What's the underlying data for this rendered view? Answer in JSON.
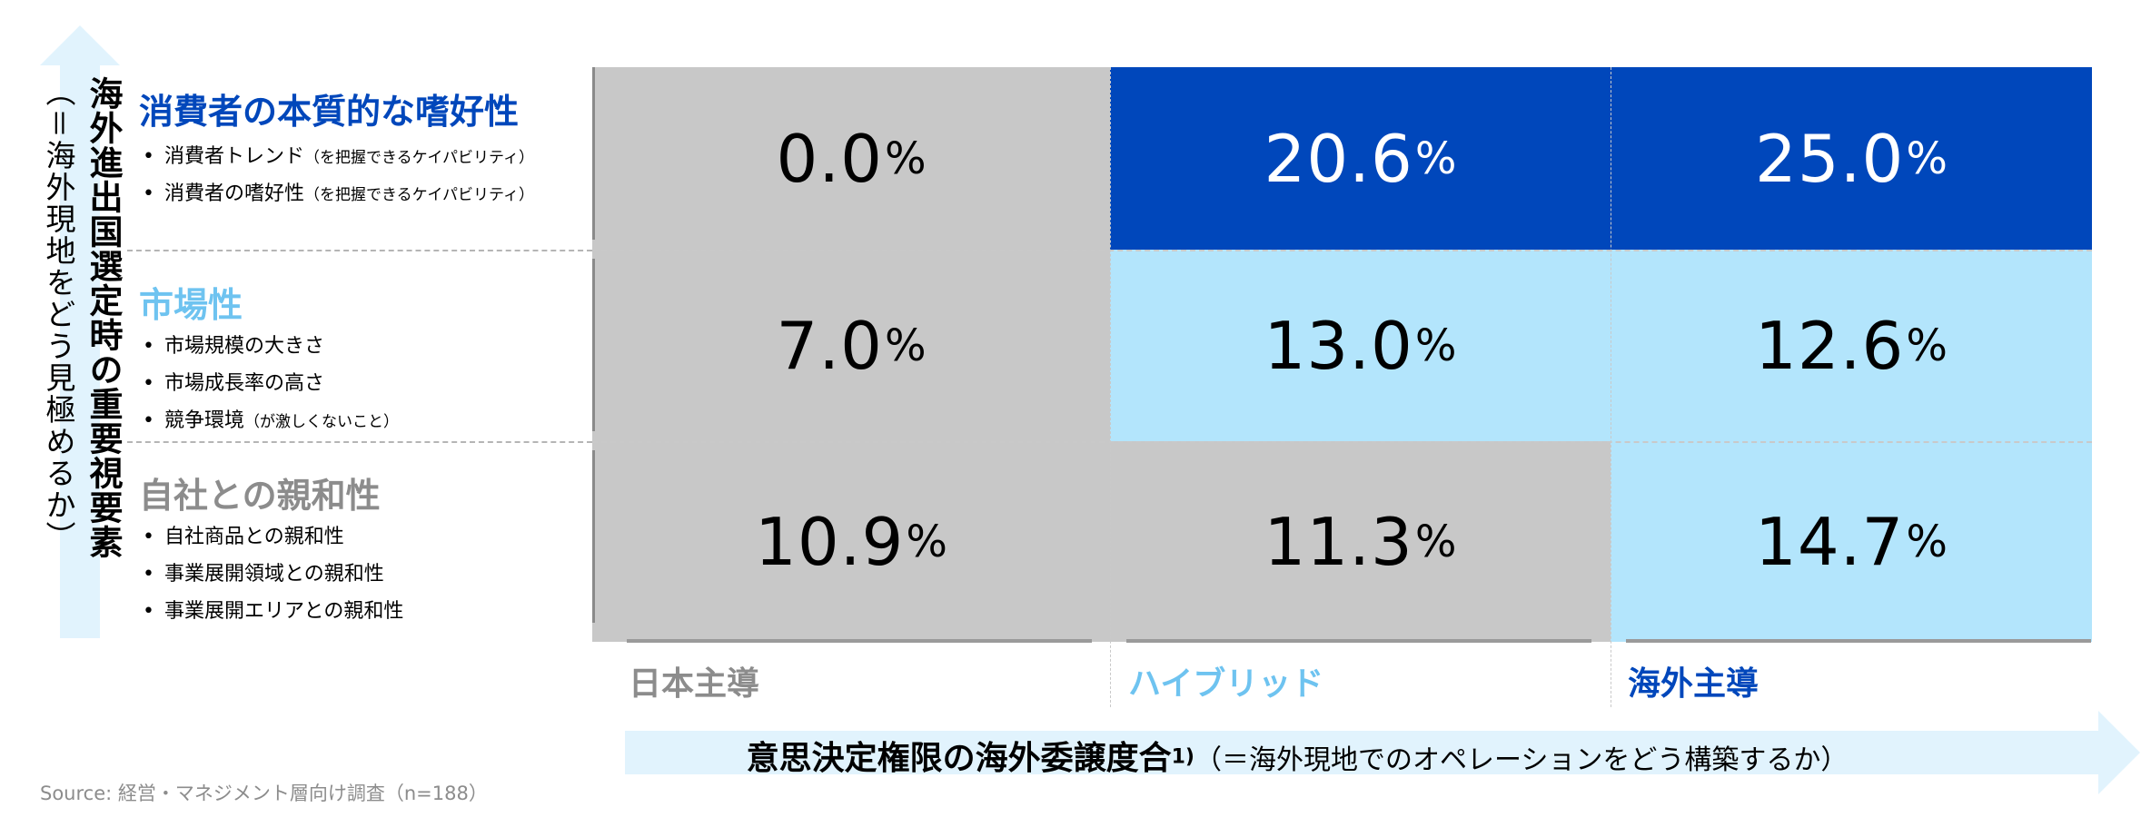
{
  "colors": {
    "dark_blue": "#0047bb",
    "light_blue": "#b3e5fc",
    "gray": "#c8c8c8",
    "label_light_blue": "#6ec3f0",
    "label_gray": "#8c8c8c",
    "arrow_fill": "#e1f3fd"
  },
  "y_axis": {
    "title": "海外進出国選定時の重要視要素",
    "subtitle": "（＝海外現地をどう見極めるか）"
  },
  "x_axis": {
    "title": "意思決定権限の海外委譲度合",
    "footnote_mark": "1)",
    "subtitle": "（＝海外現地でのオペレーションをどう構築するか）"
  },
  "source": "Source: 経営・マネジメント層向け調査（n=188）",
  "chart_data": {
    "type": "heatmap",
    "unit": "%",
    "columns": [
      "日本主導",
      "ハイブリッド",
      "海外主導"
    ],
    "rows": [
      {
        "label": "消費者の本質的な嗜好性",
        "bullets": [
          {
            "text": "消費者トレンド",
            "note": "（を把握できるケイパビリティ）"
          },
          {
            "text": "消費者の嗜好性",
            "note": "（を把握できるケイパビリティ）"
          }
        ],
        "values": [
          "0.0",
          "20.6",
          "25.0"
        ]
      },
      {
        "label": "市場性",
        "bullets": [
          {
            "text": "市場規模の大きさ",
            "note": ""
          },
          {
            "text": "市場成長率の高さ",
            "note": ""
          },
          {
            "text": "競争環境",
            "note": "（が激しくないこと）"
          }
        ],
        "values": [
          "7.0",
          "13.0",
          "12.6"
        ]
      },
      {
        "label": "自社との親和性",
        "bullets": [
          {
            "text": "自社商品との親和性",
            "note": ""
          },
          {
            "text": "事業展開領域との親和性",
            "note": ""
          },
          {
            "text": "事業展開エリアとの親和性",
            "note": ""
          }
        ],
        "values": [
          "10.9",
          "11.3",
          "14.7"
        ]
      }
    ]
  }
}
